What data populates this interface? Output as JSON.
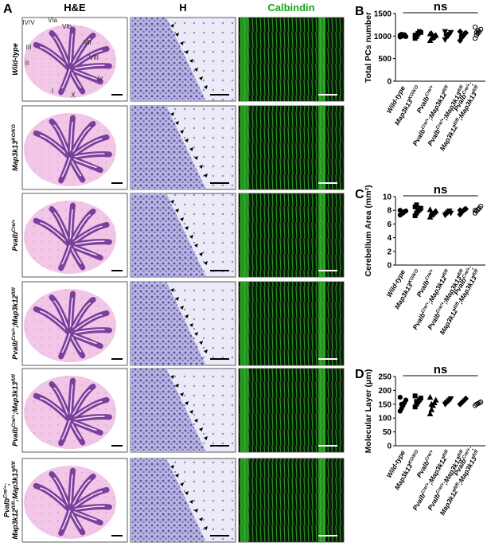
{
  "panel_a": {
    "label": "A",
    "columns": [
      {
        "text": "H&E"
      },
      {
        "text": "H"
      },
      {
        "text": "Calbindin"
      }
    ],
    "rows": [
      [
        [
          {
            "text": "Wild-type",
            "sup": false
          }
        ]
      ],
      [
        [
          {
            "text": "Map3k13",
            "sup": false
          },
          {
            "text": "KO/KO",
            "sup": true
          }
        ]
      ],
      [
        [
          {
            "text": "Pvalb",
            "sup": false
          },
          {
            "text": "Cre/+",
            "sup": true
          }
        ]
      ],
      [
        [
          {
            "text": "Pvalb",
            "sup": false
          },
          {
            "text": "Cre/+",
            "sup": true
          },
          {
            "text": ";Map3k12",
            "sup": false
          },
          {
            "text": "fl/fl",
            "sup": true
          }
        ]
      ],
      [
        [
          {
            "text": "Pvalb",
            "sup": false
          },
          {
            "text": "Cre/+",
            "sup": true
          },
          {
            "text": ";Map3k13",
            "sup": false
          },
          {
            "text": "fl/fl",
            "sup": true
          }
        ]
      ],
      [
        [
          {
            "text": "Pvalb",
            "sup": false
          },
          {
            "text": "Cre/+",
            "sup": true
          },
          {
            "text": ";",
            "sup": false
          }
        ],
        [
          {
            "text": "Map3k12",
            "sup": false
          },
          {
            "text": "fl/fl",
            "sup": true
          },
          {
            "text": ";Map3k13",
            "sup": false
          },
          {
            "text": "fl/fl",
            "sup": true
          }
        ]
      ]
    ],
    "lobules": [
      "IV/V",
      "VIa",
      "VIb",
      "VII",
      "VIII",
      "IX",
      "X",
      "I",
      "II",
      "III"
    ]
  },
  "chart_data": [
    {
      "type": "scatter",
      "panel": "B",
      "ylabel": "Total PCs number",
      "annotation": "ns",
      "ylim": [
        0,
        1500
      ],
      "yticks": [
        0,
        500,
        1000,
        1500
      ],
      "markers": [
        "circle",
        "square",
        "triangle",
        "triangle-down",
        "diamond",
        "circle-open"
      ],
      "categories": [
        [
          [
            {
              "text": "Wild-type",
              "sup": false
            }
          ]
        ],
        [
          [
            {
              "text": "Map3k13",
              "sup": false
            },
            {
              "text": "KO/KO",
              "sup": true
            }
          ]
        ],
        [
          [
            {
              "text": "Pvalb",
              "sup": false
            },
            {
              "text": "Cre/+",
              "sup": true
            }
          ]
        ],
        [
          [
            {
              "text": "Pvalb",
              "sup": false
            },
            {
              "text": "Cre/+",
              "sup": true
            },
            {
              "text": ";Map3k12",
              "sup": false
            },
            {
              "text": "fl/fl",
              "sup": true
            }
          ]
        ],
        [
          [
            {
              "text": "Pvalb",
              "sup": false
            },
            {
              "text": "Cre/+",
              "sup": true
            },
            {
              "text": ";Map3k13",
              "sup": false
            },
            {
              "text": "fl/fl",
              "sup": true
            }
          ]
        ],
        [
          [
            {
              "text": "Pvalb",
              "sup": false
            },
            {
              "text": "Cre/+",
              "sup": true
            },
            {
              "text": ";",
              "sup": false
            }
          ],
          [
            {
              "text": "Map3k12",
              "sup": false
            },
            {
              "text": "fl/fl",
              "sup": true
            },
            {
              "text": ";Map3k13",
              "sup": false
            },
            {
              "text": "fl/fl",
              "sup": true
            }
          ]
        ]
      ],
      "values": [
        [
          980,
          1000,
          1010,
          1030,
          990,
          1020,
          1040,
          1000,
          1010
        ],
        [
          950,
          1000,
          1050,
          1100,
          1080,
          1020,
          990,
          1060
        ],
        [
          900,
          950,
          980,
          1000,
          1020,
          1050,
          1060,
          970
        ],
        [
          920,
          980,
          1000,
          1040,
          1080,
          1100,
          1010
        ],
        [
          900,
          960,
          1000,
          1050,
          1070,
          1100,
          1010
        ],
        [
          950,
          1020,
          1060,
          1100,
          1150,
          1200,
          1080,
          1120
        ]
      ]
    },
    {
      "type": "scatter",
      "panel": "C",
      "ylabel": "Cerebellum Area (mm²)",
      "annotation": "ns",
      "ylim": [
        0,
        10
      ],
      "yticks": [
        0,
        2,
        4,
        6,
        8,
        10
      ],
      "markers": [
        "circle",
        "square",
        "triangle",
        "triangle-down",
        "diamond",
        "circle-open"
      ],
      "categories": [
        [
          [
            {
              "text": "Wild-type",
              "sup": false
            }
          ]
        ],
        [
          [
            {
              "text": "Map3k13",
              "sup": false
            },
            {
              "text": "KO/KO",
              "sup": true
            }
          ]
        ],
        [
          [
            {
              "text": "Pvalb",
              "sup": false
            },
            {
              "text": "Cre/+",
              "sup": true
            }
          ]
        ],
        [
          [
            {
              "text": "Pvalb",
              "sup": false
            },
            {
              "text": "Cre/+",
              "sup": true
            },
            {
              "text": ";Map3k12",
              "sup": false
            },
            {
              "text": "fl/fl",
              "sup": true
            }
          ]
        ],
        [
          [
            {
              "text": "Pvalb",
              "sup": false
            },
            {
              "text": "Cre/+",
              "sup": true
            },
            {
              "text": ";Map3k13",
              "sup": false
            },
            {
              "text": "fl/fl",
              "sup": true
            }
          ]
        ],
        [
          [
            {
              "text": "Pvalb",
              "sup": false
            },
            {
              "text": "Cre/+",
              "sup": true
            },
            {
              "text": ";",
              "sup": false
            }
          ],
          [
            {
              "text": "Map3k12",
              "sup": false
            },
            {
              "text": "fl/fl",
              "sup": true
            },
            {
              "text": ";Map3k13",
              "sup": false
            },
            {
              "text": "fl/fl",
              "sup": true
            }
          ]
        ]
      ],
      "values": [
        [
          7.3,
          7.5,
          7.6,
          7.8,
          7.9,
          8.0,
          7.7
        ],
        [
          7.2,
          7.6,
          7.9,
          8.1,
          8.3,
          8.5,
          8.8,
          8.0
        ],
        [
          7.0,
          7.3,
          7.5,
          7.7,
          7.9,
          8.1,
          7.6
        ],
        [
          7.3,
          7.5,
          7.7,
          7.9,
          7.6
        ],
        [
          7.4,
          7.7,
          7.9,
          8.1,
          8.2,
          8.0
        ],
        [
          7.6,
          7.9,
          8.1,
          8.3,
          8.6,
          8.0
        ]
      ]
    },
    {
      "type": "scatter",
      "panel": "D",
      "ylabel": "Molecular Layer (μm)",
      "annotation": "ns",
      "ylim": [
        0,
        250
      ],
      "yticks": [
        0,
        50,
        100,
        150,
        200,
        250
      ],
      "markers": [
        "circle",
        "square",
        "triangle",
        "triangle-down",
        "diamond",
        "circle-open"
      ],
      "categories": [
        [
          [
            {
              "text": "Wild-type",
              "sup": false
            }
          ]
        ],
        [
          [
            {
              "text": "Map3k13",
              "sup": false
            },
            {
              "text": "KO/KO",
              "sup": true
            }
          ]
        ],
        [
          [
            {
              "text": "Pvalb",
              "sup": false
            },
            {
              "text": "Cre/+",
              "sup": true
            }
          ]
        ],
        [
          [
            {
              "text": "Pvalb",
              "sup": false
            },
            {
              "text": "Cre/+",
              "sup": true
            },
            {
              "text": ";Map3k12",
              "sup": false
            },
            {
              "text": "fl/fl",
              "sup": true
            }
          ]
        ],
        [
          [
            {
              "text": "Pvalb",
              "sup": false
            },
            {
              "text": "Cre/+",
              "sup": true
            },
            {
              "text": ";Map3k13",
              "sup": false
            },
            {
              "text": "fl/fl",
              "sup": true
            }
          ]
        ],
        [
          [
            {
              "text": "Pvalb",
              "sup": false
            },
            {
              "text": "Cre/+",
              "sup": true
            },
            {
              "text": ";",
              "sup": false
            }
          ],
          [
            {
              "text": "Map3k12",
              "sup": false
            },
            {
              "text": "fl/fl",
              "sup": true
            },
            {
              "text": ";Map3k13",
              "sup": false
            },
            {
              "text": "fl/fl",
              "sup": true
            }
          ]
        ]
      ],
      "values": [
        [
          125,
          135,
          145,
          155,
          165,
          175,
          150
        ],
        [
          140,
          150,
          158,
          165,
          172,
          180,
          160
        ],
        [
          115,
          130,
          145,
          155,
          165,
          175,
          150
        ],
        [
          150,
          155,
          160,
          165,
          170
        ],
        [
          150,
          155,
          160,
          165,
          170
        ],
        [
          145,
          150,
          152,
          155,
          158
        ]
      ]
    }
  ]
}
